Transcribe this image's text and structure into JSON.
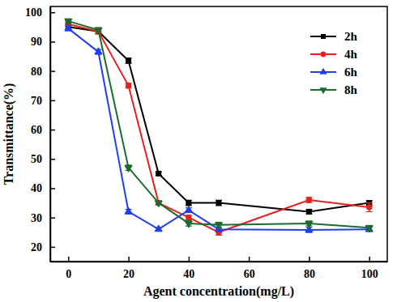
{
  "chart_data": {
    "type": "line",
    "x_label": "Agent concentration(mg/L)",
    "y_label": "Transmittance(%)",
    "x": [
      0,
      10,
      20,
      30,
      40,
      50,
      80,
      100
    ],
    "xlim": [
      -6,
      106
    ],
    "xticks": [
      0,
      20,
      40,
      60,
      80,
      100
    ],
    "ylim": [
      15,
      102
    ],
    "yticks": [
      20,
      30,
      40,
      50,
      60,
      70,
      80,
      90,
      100
    ],
    "legend": "upper right",
    "grid": false,
    "series": [
      {
        "name": "2h",
        "color": "#000000",
        "marker": "square",
        "line_style": "solid",
        "values": [
          95,
          93.5,
          83.5,
          45,
          35,
          35,
          32,
          35
        ],
        "errors": [
          0.8,
          0.8,
          0.9,
          0.6,
          0.9,
          0.9,
          0.8,
          0.8
        ]
      },
      {
        "name": "4h",
        "color": "#e8201c",
        "marker": "circle",
        "line_style": "solid",
        "values": [
          96,
          93.5,
          75,
          35,
          30,
          25,
          36,
          33.5
        ],
        "errors": [
          0.8,
          0.8,
          0.8,
          0.7,
          0.8,
          1,
          0.9,
          1.5
        ]
      },
      {
        "name": "6h",
        "color": "#1f3ff0",
        "marker": "triangle-up",
        "line_style": "solid",
        "values": [
          94.5,
          86.5,
          32,
          26,
          32.5,
          26,
          25.8,
          26
        ],
        "errors": [
          0.8,
          0.8,
          0.8,
          0.5,
          0.8,
          0.7,
          0.9,
          0.8
        ]
      },
      {
        "name": "8h",
        "color": "#1b6b2e",
        "marker": "triangle-down",
        "line_style": "solid",
        "values": [
          97,
          94,
          47,
          35,
          28,
          27.5,
          28,
          26.5
        ],
        "errors": [
          0.8,
          0.8,
          0.9,
          0.6,
          0.9,
          0.9,
          0.8,
          0.8
        ]
      }
    ]
  }
}
